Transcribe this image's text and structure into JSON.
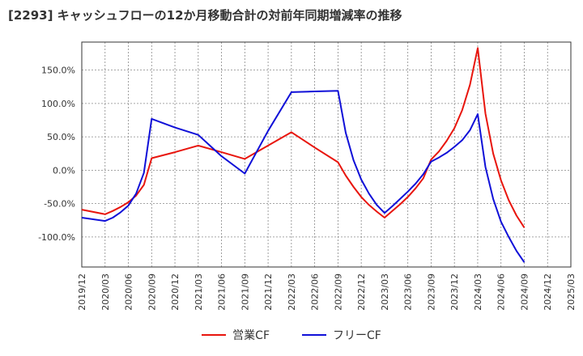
{
  "title": "[2293]  キャッシュフローの12か月移動合計の対前年同期増減率の推移",
  "colors": {
    "operating": "#e8150d",
    "free": "#1010d8",
    "grid": "#888888",
    "axis": "#333333"
  },
  "chart_data": {
    "type": "line",
    "title": "[2293]  キャッシュフローの12か月移動合計の対前年同期増減率の推移",
    "xlabel": "",
    "ylabel": "",
    "x_ticks": [
      "2019/12",
      "2020/03",
      "2020/06",
      "2020/09",
      "2020/12",
      "2021/03",
      "2021/06",
      "2021/09",
      "2021/12",
      "2022/03",
      "2022/06",
      "2022/09",
      "2022/12",
      "2023/03",
      "2023/06",
      "2023/09",
      "2023/12",
      "2024/03",
      "2024/06",
      "2024/09",
      "2024/12",
      "2025/03"
    ],
    "y_ticks": [
      "150.0%",
      "100.0%",
      "50.0%",
      "0.0%",
      "-50.0%",
      "-100.0%"
    ],
    "y_tick_values": [
      150,
      100,
      50,
      0,
      -50,
      -100
    ],
    "ylim": [
      -145,
      192
    ],
    "grid": true,
    "legend_position": "bottom",
    "series": [
      {
        "name": "営業CF",
        "color": "#e8150d",
        "points": [
          [
            "2019/12",
            -59
          ],
          [
            "2020/03",
            -66
          ],
          [
            "2020/04",
            -61
          ],
          [
            "2020/05",
            -55
          ],
          [
            "2020/06",
            -48
          ],
          [
            "2020/07",
            -38
          ],
          [
            "2020/08",
            -22
          ],
          [
            "2020/09",
            18
          ],
          [
            "2020/12",
            27
          ],
          [
            "2021/03",
            37
          ],
          [
            "2021/06",
            27
          ],
          [
            "2021/09",
            17
          ],
          [
            "2021/12",
            37
          ],
          [
            "2022/03",
            57
          ],
          [
            "2022/06",
            34
          ],
          [
            "2022/09",
            12
          ],
          [
            "2022/10",
            -8
          ],
          [
            "2022/11",
            -25
          ],
          [
            "2022/12",
            -40
          ],
          [
            "2023/01",
            -52
          ],
          [
            "2023/02",
            -62
          ],
          [
            "2023/03",
            -71
          ],
          [
            "2023/04",
            -61
          ],
          [
            "2023/05",
            -51
          ],
          [
            "2023/06",
            -40
          ],
          [
            "2023/07",
            -27
          ],
          [
            "2023/08",
            -12
          ],
          [
            "2023/09",
            16
          ],
          [
            "2023/10",
            28
          ],
          [
            "2023/11",
            44
          ],
          [
            "2023/12",
            63
          ],
          [
            "2024/01",
            90
          ],
          [
            "2024/02",
            128
          ],
          [
            "2024/03",
            183
          ],
          [
            "2024/04",
            85
          ],
          [
            "2024/05",
            25
          ],
          [
            "2024/06",
            -15
          ],
          [
            "2024/07",
            -45
          ],
          [
            "2024/08",
            -68
          ],
          [
            "2024/09",
            -86
          ]
        ]
      },
      {
        "name": "フリーCF",
        "color": "#1010d8",
        "points": [
          [
            "2019/12",
            -71
          ],
          [
            "2020/03",
            -76
          ],
          [
            "2020/04",
            -71
          ],
          [
            "2020/05",
            -63
          ],
          [
            "2020/06",
            -53
          ],
          [
            "2020/07",
            -35
          ],
          [
            "2020/08",
            -4
          ],
          [
            "2020/09",
            77
          ],
          [
            "2020/12",
            64
          ],
          [
            "2021/03",
            53
          ],
          [
            "2021/06",
            21
          ],
          [
            "2021/09",
            -5
          ],
          [
            "2021/12",
            59
          ],
          [
            "2022/03",
            117
          ],
          [
            "2022/06",
            118
          ],
          [
            "2022/09",
            119
          ],
          [
            "2022/10",
            56
          ],
          [
            "2022/11",
            15
          ],
          [
            "2022/12",
            -14
          ],
          [
            "2023/01",
            -35
          ],
          [
            "2023/02",
            -52
          ],
          [
            "2023/03",
            -64
          ],
          [
            "2023/04",
            -54
          ],
          [
            "2023/05",
            -43
          ],
          [
            "2023/06",
            -32
          ],
          [
            "2023/07",
            -20
          ],
          [
            "2023/08",
            -6
          ],
          [
            "2023/09",
            13
          ],
          [
            "2023/10",
            19
          ],
          [
            "2023/11",
            26
          ],
          [
            "2023/12",
            35
          ],
          [
            "2024/01",
            45
          ],
          [
            "2024/02",
            60
          ],
          [
            "2024/03",
            84
          ],
          [
            "2024/04",
            5
          ],
          [
            "2024/05",
            -43
          ],
          [
            "2024/06",
            -77
          ],
          [
            "2024/07",
            -100
          ],
          [
            "2024/08",
            -121
          ],
          [
            "2024/09",
            -138
          ]
        ]
      }
    ]
  }
}
